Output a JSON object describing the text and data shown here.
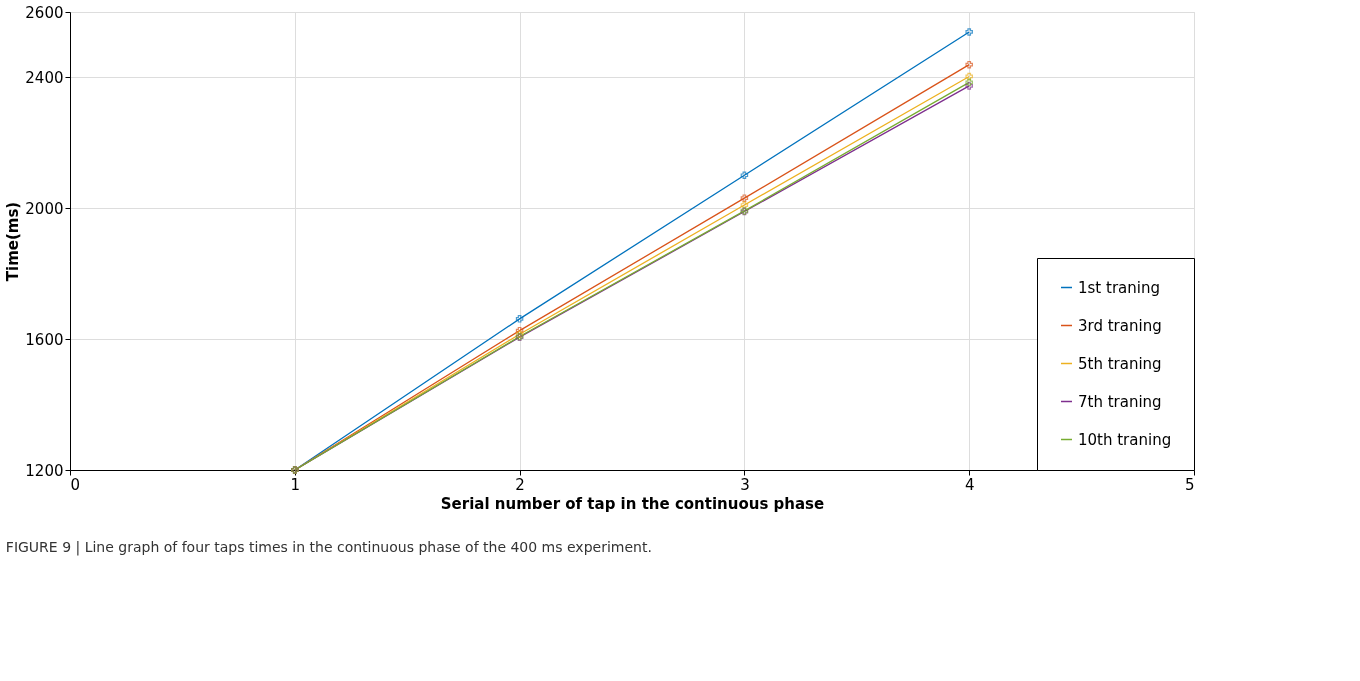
{
  "chart_data": {
    "type": "line",
    "xlabel": "Serial number of tap in the continuous phase",
    "ylabel": "Time(ms)",
    "x": [
      1,
      2,
      3,
      4
    ],
    "series": [
      {
        "name": "1st traning",
        "color": "#0072bd",
        "values": [
          1200,
          1662,
          2101,
          2539
        ]
      },
      {
        "name": "3rd traning",
        "color": "#d95319",
        "values": [
          1200,
          1626,
          2031,
          2439
        ]
      },
      {
        "name": "5th traning",
        "color": "#edb120",
        "values": [
          1200,
          1615,
          2010,
          2403
        ]
      },
      {
        "name": "7th traning",
        "color": "#7e2f8e",
        "values": [
          1200,
          1606,
          1990,
          2374
        ]
      },
      {
        "name": "10th traning",
        "color": "#77ac30",
        "values": [
          1200,
          1608,
          1992,
          2385
        ]
      }
    ],
    "xlim": [
      0,
      5
    ],
    "xticks": [
      0,
      1,
      2,
      3,
      4,
      5
    ],
    "ylim": [
      1200,
      2600
    ],
    "yticks": [
      1200,
      1600,
      2000,
      2400,
      2600
    ],
    "grid": true,
    "legend": "bottom right",
    "marker": "cross",
    "line_style": "solid",
    "annotations": [
      "FIGURE 9 | Line graph of four taps times in the continuous phase of the 400 ms experiment."
    ]
  }
}
